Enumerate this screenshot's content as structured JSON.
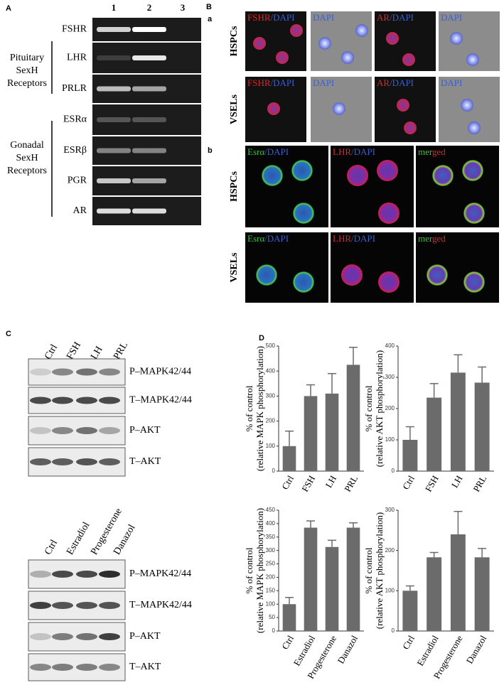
{
  "panel_a": {
    "label": "A",
    "lanes": [
      "1",
      "2",
      "3"
    ],
    "receptors": [
      "FSHR",
      "LHR",
      "PRLR",
      "ESRα",
      "ESRβ",
      "PGR",
      "AR"
    ],
    "groups": [
      [
        "Pituitary",
        "SexH",
        "Receptors"
      ],
      [
        "Gonadal",
        "SexH",
        "Receptors"
      ]
    ]
  },
  "panel_b": {
    "label": "B",
    "a": {
      "label": "a",
      "rows": [
        "HSPCs",
        "VSELs"
      ],
      "columns": [
        [
          {
            "text": "FSHR",
            "color": "#d42a2a"
          },
          {
            "text": "/DAPI",
            "color": "#3a5fd0"
          }
        ],
        [
          {
            "text": "DAPI",
            "color": "#3a5fd0"
          }
        ],
        [
          {
            "text": "AR",
            "color": "#d42a2a"
          },
          {
            "text": "/DAPI",
            "color": "#3a5fd0"
          }
        ],
        [
          {
            "text": "DAPI",
            "color": "#3a5fd0"
          }
        ]
      ]
    },
    "b": {
      "label": "b",
      "rows": [
        "HSPCs",
        "VSELs"
      ],
      "columns": [
        [
          {
            "text": "Esrα",
            "color": "#3fbf3f"
          },
          {
            "text": "/DAPI",
            "color": "#3a5fd0"
          }
        ],
        [
          {
            "text": "LHR",
            "color": "#d42a2a"
          },
          {
            "text": "/DAPI",
            "color": "#3a5fd0"
          }
        ],
        [
          {
            "text": "mer",
            "color": "#3fbf3f"
          },
          {
            "text": "ged",
            "color": "#d42a2a"
          }
        ]
      ]
    }
  },
  "panel_c": {
    "label": "C",
    "blots": [
      {
        "lanes": [
          "Ctrl",
          "FSH",
          "LH",
          "PRL"
        ],
        "rows": [
          "P–MAPK42/44",
          "T–MAPK42/44",
          "P–AKT",
          "T–AKT"
        ]
      },
      {
        "lanes": [
          "Ctrl",
          "Estradiol",
          "Progesterone",
          "Danazol"
        ],
        "rows": [
          "P–MAPK42/44",
          "T–MAPK42/44",
          "P–AKT",
          "T–AKT"
        ]
      }
    ]
  },
  "panel_d": {
    "label": "D"
  },
  "chart_data": [
    {
      "type": "bar",
      "y_label": [
        "% of control",
        "(relative MAPK phosphorylation)"
      ],
      "categories": [
        "Ctrl",
        "FSH",
        "LH",
        "PRL"
      ],
      "values": [
        100,
        300,
        310,
        425
      ],
      "errors": [
        60,
        45,
        80,
        70
      ],
      "color": "#6b6b6b",
      "ylim": [
        0,
        500
      ],
      "yticks": [
        0,
        100,
        200,
        300,
        400,
        500
      ]
    },
    {
      "type": "bar",
      "y_label": [
        "% of control",
        "(relative AKT phosphorylation)"
      ],
      "categories": [
        "Ctrl",
        "FSH",
        "LH",
        "PRL"
      ],
      "values": [
        100,
        235,
        315,
        283
      ],
      "errors": [
        42,
        45,
        57,
        50
      ],
      "color": "#6b6b6b",
      "ylim": [
        0,
        400
      ],
      "yticks": [
        0,
        100,
        200,
        300,
        400
      ]
    },
    {
      "type": "bar",
      "y_label": [
        "% of control",
        "(relative MAPK phosphorylation)"
      ],
      "categories": [
        "Ctrl",
        "Estradiol",
        "Progesterone",
        "Danazol"
      ],
      "values": [
        100,
        385,
        313,
        385
      ],
      "errors": [
        25,
        25,
        25,
        18
      ],
      "color": "#6b6b6b",
      "ylim": [
        0,
        450
      ],
      "yticks": [
        0,
        50,
        100,
        150,
        200,
        250,
        300,
        350,
        400,
        450
      ]
    },
    {
      "type": "bar",
      "y_label": [
        "% of control",
        "(relative AKT phosphorylation)"
      ],
      "categories": [
        "Ctrl",
        "Estradiol",
        "Progesterone",
        "Danazol"
      ],
      "values": [
        100,
        183,
        240,
        183
      ],
      "errors": [
        12,
        12,
        57,
        22
      ],
      "color": "#6b6b6b",
      "ylim": [
        0,
        300
      ],
      "yticks": [
        0,
        100,
        200,
        300
      ]
    }
  ]
}
